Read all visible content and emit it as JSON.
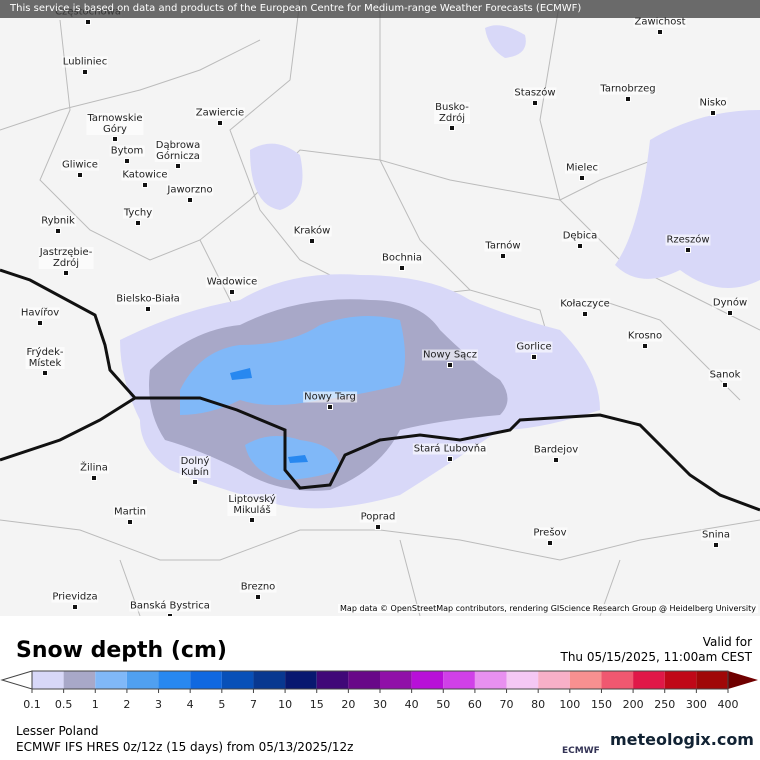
{
  "banner": "This service is based on data and products of the European Centre for Medium-range Weather Forecasts (ECMWF)",
  "map": {
    "cities": [
      "Częstochowa",
      "Zawichost",
      "Lubliniec",
      "Staszów",
      "Tarnobrzeg",
      "Nisko",
      "Busko-\nZdrój",
      "Tarnowskie\nGóry",
      "Zawiercie",
      "Bytom",
      "Dąbrowa\nGórnicza",
      "Gliwice",
      "Katowice",
      "Mielec",
      "Jaworzno",
      "Tychy",
      "Rybnik",
      "Kraków",
      "Tarnów",
      "Dębica",
      "Rzeszów",
      "Jastrzębie-\nZdrój",
      "Bochnia",
      "Wadowice",
      "Bielsko-Biała",
      "Kołaczyce",
      "Dynów",
      "Havířov",
      "Krosno",
      "Gorlice",
      "Nowy Sącz",
      "Frýdek-\nMístek",
      "Sanok",
      "Nowy Targ",
      "Stará Ľubovňa",
      "Bardejov",
      "Žilina",
      "Dolný\nKubín",
      "Liptovský\nMikuláš",
      "Martin",
      "Poprad",
      "Prešov",
      "Snina",
      "Brezno",
      "Prievidza",
      "Banská Bystrica"
    ],
    "attribution": "Map data © OpenStreetMap contributors, rendering GIScience Research Group @ Heidelberg University"
  },
  "legend": {
    "title": "Snow depth (cm)",
    "values": [
      0.1,
      0.5,
      1,
      2,
      3,
      4,
      5,
      7,
      10,
      15,
      20,
      30,
      40,
      50,
      60,
      70,
      80,
      100,
      150,
      200,
      250,
      300,
      400
    ],
    "colors": [
      "#d8d8f8",
      "#a8a8c8",
      "#80b8f8",
      "#50a0f0",
      "#2888f0",
      "#1068e0",
      "#0850b8",
      "#083890",
      "#081870",
      "#400878",
      "#680888",
      "#9010a8",
      "#b810d8",
      "#d040e8",
      "#e890f0",
      "#f4c8f4",
      "#f8b0c8",
      "#f89090",
      "#f05870",
      "#e01848",
      "#c00818",
      "#a00808",
      "#700000"
    ]
  },
  "valid": {
    "label": "Valid for",
    "time": "Thu 05/15/2025, 11:00am CEST"
  },
  "footer": {
    "region": "Lesser Poland",
    "model": "ECMWF IFS HRES 0z/12z (15 days) from 05/13/2025/12z",
    "ecmwf": "ECMWF",
    "brand": "meteologix.com"
  }
}
